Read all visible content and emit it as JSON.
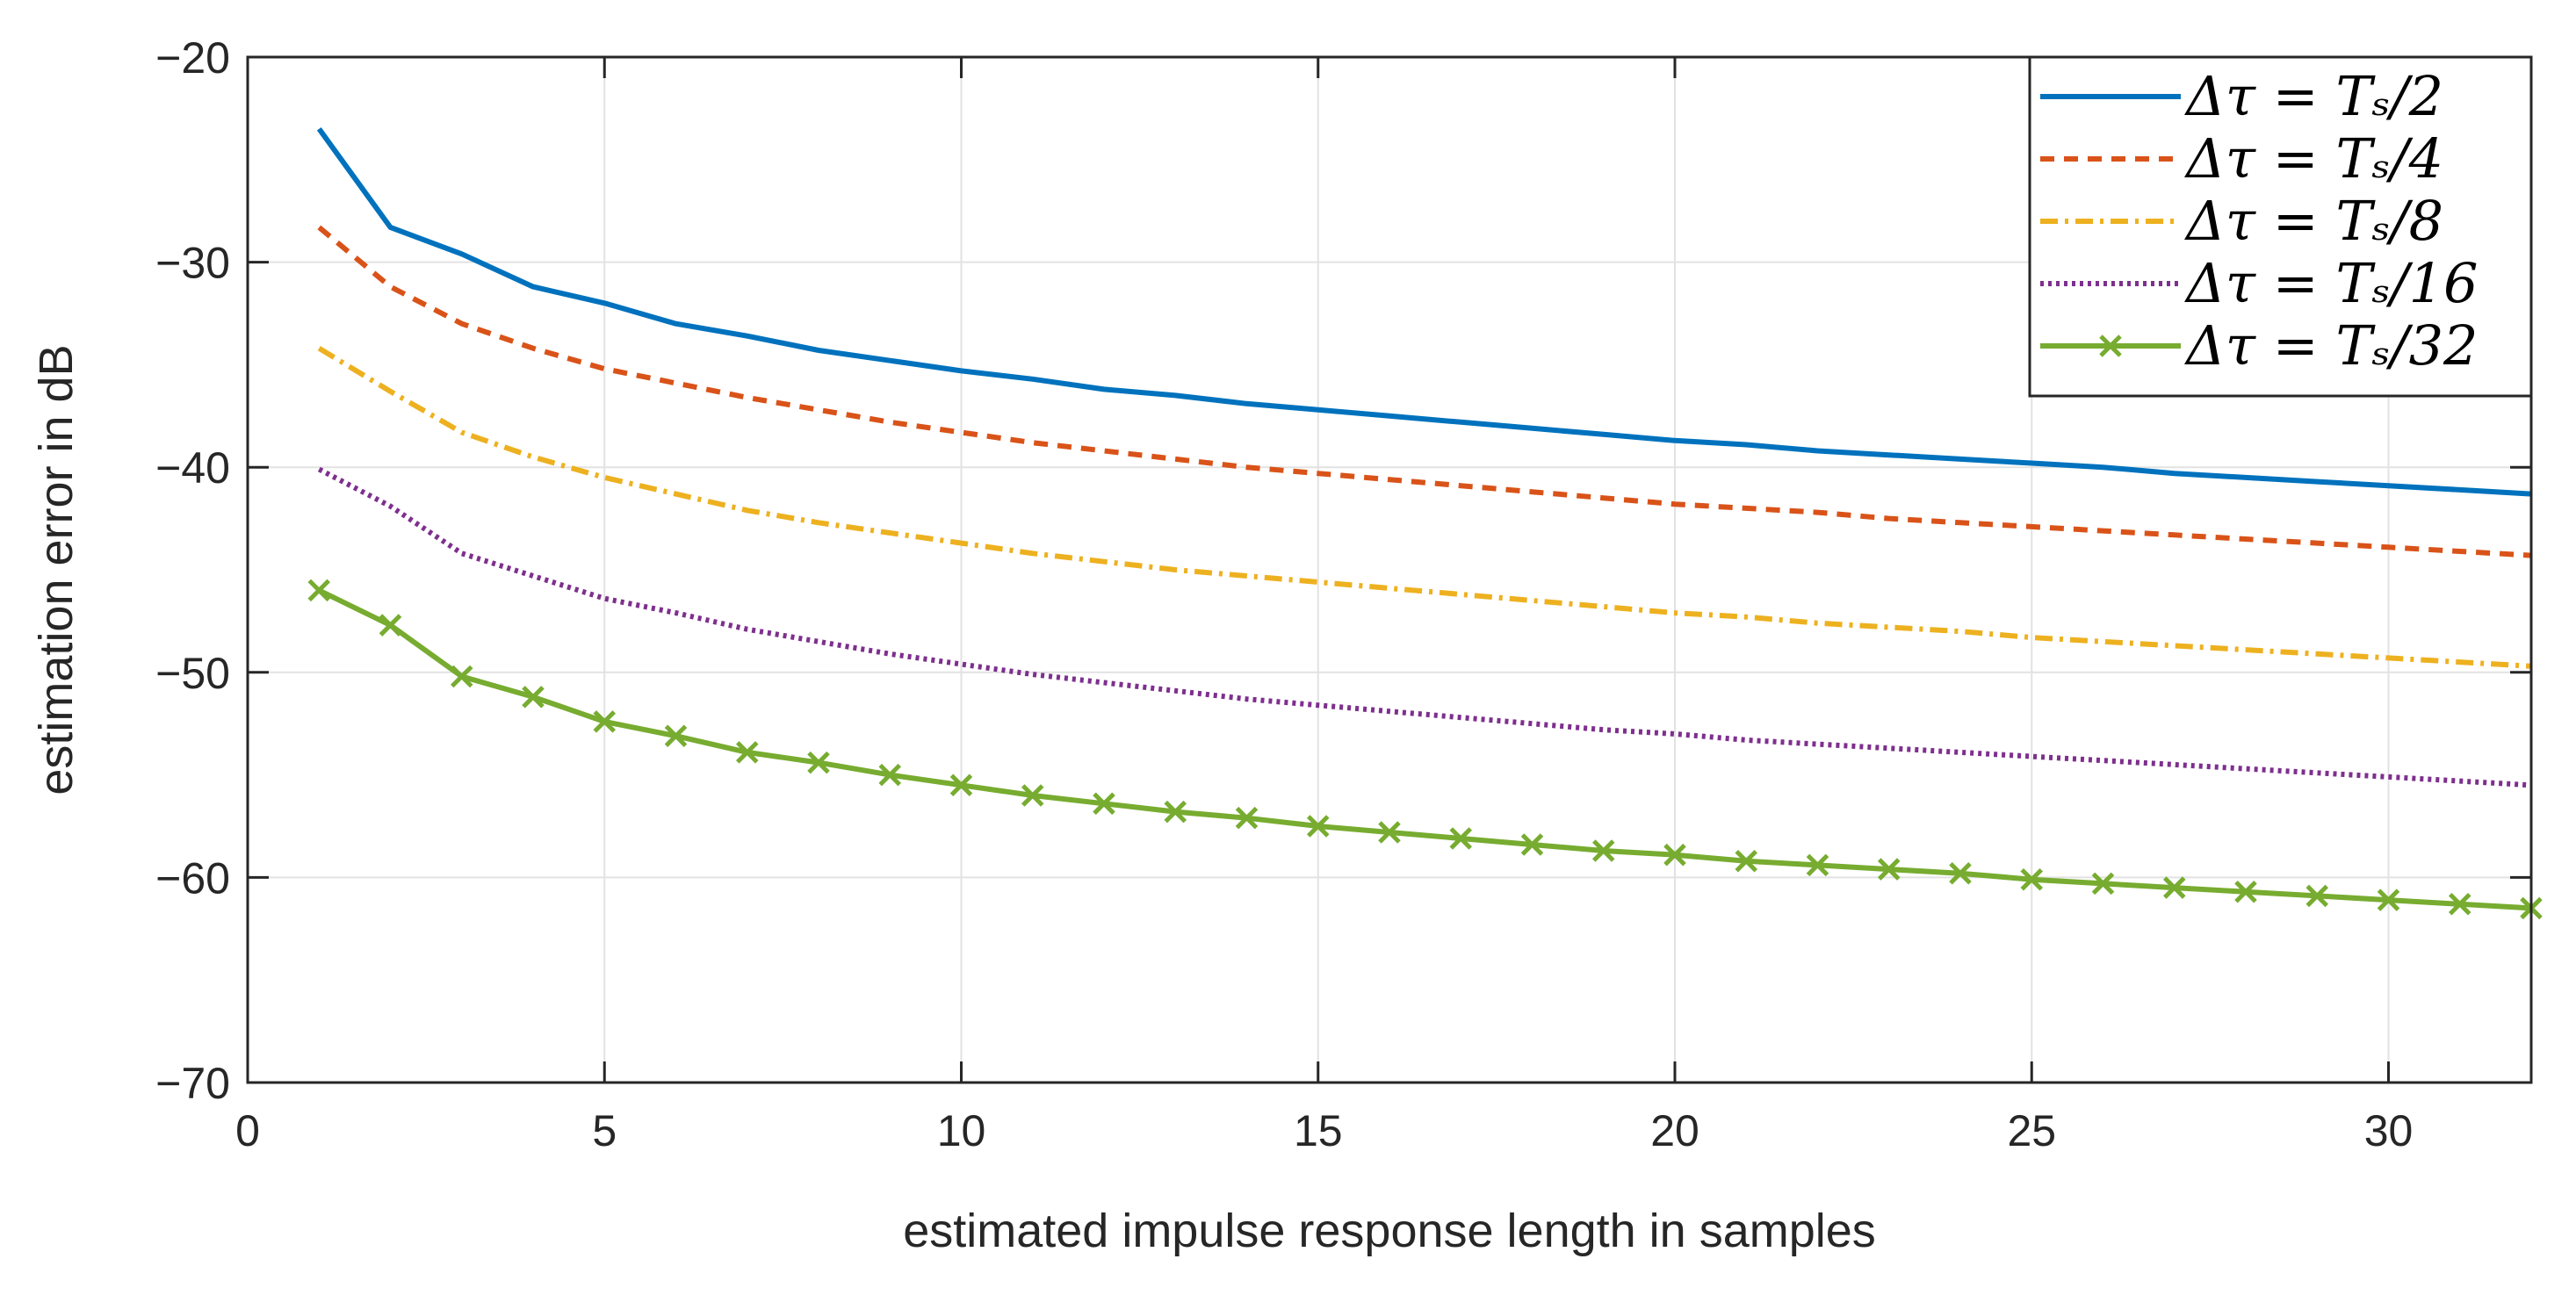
{
  "chart_data": {
    "type": "line",
    "title": "",
    "xlabel": "estimated impulse response length in samples",
    "ylabel": "estimation error in dB",
    "xlim": [
      0,
      32
    ],
    "ylim": [
      -70,
      -20
    ],
    "grid": true,
    "legend_position": "top-right",
    "xticks": [
      "0",
      "5",
      "10",
      "15",
      "20",
      "25",
      "30"
    ],
    "yticks": [
      "−70",
      "−60",
      "−50",
      "−40",
      "−30",
      "−20"
    ],
    "x": [
      1,
      2,
      3,
      4,
      5,
      6,
      7,
      8,
      9,
      10,
      11,
      12,
      13,
      14,
      15,
      16,
      17,
      18,
      19,
      20,
      21,
      22,
      23,
      24,
      25,
      26,
      27,
      28,
      29,
      30,
      31,
      32
    ],
    "series": [
      {
        "name": "Δτ = Tₛ/2",
        "color": "#0072BD",
        "style": "solid",
        "marker": "none",
        "values": [
          -23.5,
          -28.3,
          -29.6,
          -31.2,
          -32.0,
          -33.0,
          -33.6,
          -34.3,
          -34.8,
          -35.3,
          -35.7,
          -36.2,
          -36.5,
          -36.9,
          -37.2,
          -37.5,
          -37.8,
          -38.1,
          -38.4,
          -38.7,
          -38.9,
          -39.2,
          -39.4,
          -39.6,
          -39.8,
          -40.0,
          -40.3,
          -40.5,
          -40.7,
          -40.9,
          -41.1,
          -41.3
        ]
      },
      {
        "name": "Δτ = Tₛ/4",
        "color": "#D95319",
        "style": "dashed",
        "marker": "none",
        "values": [
          -28.3,
          -31.2,
          -33.0,
          -34.2,
          -35.2,
          -35.9,
          -36.6,
          -37.2,
          -37.8,
          -38.3,
          -38.8,
          -39.2,
          -39.6,
          -40.0,
          -40.3,
          -40.6,
          -40.9,
          -41.2,
          -41.5,
          -41.8,
          -42.0,
          -42.2,
          -42.5,
          -42.7,
          -42.9,
          -43.1,
          -43.3,
          -43.5,
          -43.7,
          -43.9,
          -44.1,
          -44.3
        ]
      },
      {
        "name": "Δτ = Tₛ/8",
        "color": "#EDB120",
        "style": "dashdot",
        "marker": "none",
        "values": [
          -34.2,
          -36.3,
          -38.3,
          -39.5,
          -40.5,
          -41.3,
          -42.1,
          -42.7,
          -43.2,
          -43.7,
          -44.2,
          -44.6,
          -45.0,
          -45.3,
          -45.6,
          -45.9,
          -46.2,
          -46.5,
          -46.8,
          -47.1,
          -47.3,
          -47.6,
          -47.8,
          -48.0,
          -48.3,
          -48.5,
          -48.7,
          -48.9,
          -49.1,
          -49.3,
          -49.5,
          -49.7
        ]
      },
      {
        "name": "Δτ = Tₛ/16",
        "color": "#7E2F8E",
        "style": "dotted",
        "marker": "none",
        "values": [
          -40.1,
          -41.9,
          -44.2,
          -45.3,
          -46.4,
          -47.1,
          -47.9,
          -48.5,
          -49.1,
          -49.6,
          -50.1,
          -50.5,
          -50.9,
          -51.3,
          -51.6,
          -51.9,
          -52.2,
          -52.5,
          -52.8,
          -53.0,
          -53.3,
          -53.5,
          -53.7,
          -53.9,
          -54.1,
          -54.3,
          -54.5,
          -54.7,
          -54.9,
          -55.1,
          -55.3,
          -55.5
        ]
      },
      {
        "name": "Δτ = Tₛ/32",
        "color": "#77AC30",
        "style": "solid",
        "marker": "x",
        "values": [
          -46.0,
          -47.7,
          -50.2,
          -51.2,
          -52.4,
          -53.1,
          -53.9,
          -54.4,
          -55.0,
          -55.5,
          -56.0,
          -56.4,
          -56.8,
          -57.1,
          -57.5,
          -57.8,
          -58.1,
          -58.4,
          -58.7,
          -58.9,
          -59.2,
          -59.4,
          -59.6,
          -59.8,
          -60.1,
          -60.3,
          -60.5,
          -60.7,
          -60.9,
          -61.1,
          -61.3,
          -61.5
        ]
      }
    ]
  }
}
